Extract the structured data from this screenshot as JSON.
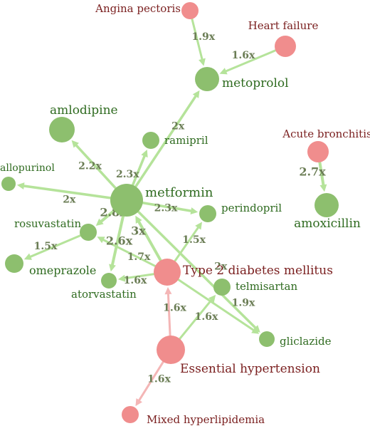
{
  "colors": {
    "drug_node": "#8dbf6e",
    "condition_node": "#f08d8d",
    "drug_text": "#2f6b20",
    "condition_text": "#7a1f1f",
    "drug_edge": "#b5e39a",
    "condition_edge": "#f4b6b6",
    "edge_label": "#6b7d55"
  },
  "nodes": [
    {
      "id": "angina",
      "label": "Angina pectoris",
      "type": "condition"
    },
    {
      "id": "heartfailure",
      "label": "Heart failure",
      "type": "condition"
    },
    {
      "id": "metoprolol",
      "label": "metoprolol",
      "type": "drug"
    },
    {
      "id": "amlodipine",
      "label": "amlodipine",
      "type": "drug"
    },
    {
      "id": "ramipril",
      "label": "ramipril",
      "type": "drug"
    },
    {
      "id": "acutebronchitis",
      "label": "Acute bronchitis",
      "type": "condition"
    },
    {
      "id": "allopurinol",
      "label": "allopurinol",
      "type": "drug"
    },
    {
      "id": "metformin",
      "label": "metformin",
      "type": "drug"
    },
    {
      "id": "perindopril",
      "label": "perindopril",
      "type": "drug"
    },
    {
      "id": "amoxicillin",
      "label": "amoxicillin",
      "type": "drug"
    },
    {
      "id": "rosuvastatin",
      "label": "rosuvastatin",
      "type": "drug"
    },
    {
      "id": "omeprazole",
      "label": "omeprazole",
      "type": "drug"
    },
    {
      "id": "t2dm",
      "label": "Type 2 diabetes mellitus",
      "type": "condition"
    },
    {
      "id": "atorvastatin",
      "label": "atorvastatin",
      "type": "drug"
    },
    {
      "id": "telmisartan",
      "label": "telmisartan",
      "type": "drug"
    },
    {
      "id": "gliclazide",
      "label": "gliclazide",
      "type": "drug"
    },
    {
      "id": "hypertension",
      "label": "Essential hypertension",
      "type": "condition"
    },
    {
      "id": "hyperlipidemia",
      "label": "Mixed hyperlipidemia",
      "type": "condition"
    }
  ],
  "edges": [
    {
      "from": "angina",
      "to": "metoprolol",
      "label": "1.9x",
      "type": "drug"
    },
    {
      "from": "heartfailure",
      "to": "metoprolol",
      "label": "1.6x",
      "type": "drug"
    },
    {
      "from": "metformin",
      "to": "metoprolol",
      "label": "2x",
      "type": "drug"
    },
    {
      "from": "metformin",
      "to": "amlodipine",
      "label": "2.2x",
      "type": "drug"
    },
    {
      "from": "metformin",
      "to": "ramipril",
      "label": "2.3x",
      "type": "drug"
    },
    {
      "from": "metformin",
      "to": "allopurinol",
      "label": "2x",
      "type": "drug"
    },
    {
      "from": "metformin",
      "to": "perindopril",
      "label": "2.3x",
      "type": "drug"
    },
    {
      "from": "metformin",
      "to": "rosuvastatin",
      "label": "2.8x",
      "type": "drug"
    },
    {
      "from": "metformin",
      "to": "atorvastatin",
      "label": "2.6x",
      "type": "drug"
    },
    {
      "from": "metformin",
      "to": "gliclazide",
      "label": "2x",
      "type": "drug"
    },
    {
      "from": "t2dm",
      "to": "metformin",
      "label": "3x",
      "type": "drug"
    },
    {
      "from": "t2dm",
      "to": "rosuvastatin",
      "label": "1.7x",
      "type": "drug"
    },
    {
      "from": "t2dm",
      "to": "atorvastatin",
      "label": "1.6x",
      "type": "drug"
    },
    {
      "from": "t2dm",
      "to": "perindopril",
      "label": "1.5x",
      "type": "drug"
    },
    {
      "from": "t2dm",
      "to": "gliclazide",
      "label": "1.9x",
      "type": "drug"
    },
    {
      "from": "rosuvastatin",
      "to": "omeprazole",
      "label": "1.5x",
      "type": "drug"
    },
    {
      "from": "hypertension",
      "to": "telmisartan",
      "label": "1.6x",
      "type": "drug"
    },
    {
      "from": "hypertension",
      "to": "t2dm",
      "label": "1.6x",
      "type": "condition"
    },
    {
      "from": "hypertension",
      "to": "hyperlipidemia",
      "label": "1.6x",
      "type": "condition"
    },
    {
      "from": "acutebronchitis",
      "to": "amoxicillin",
      "label": "2.7x",
      "type": "drug"
    }
  ]
}
